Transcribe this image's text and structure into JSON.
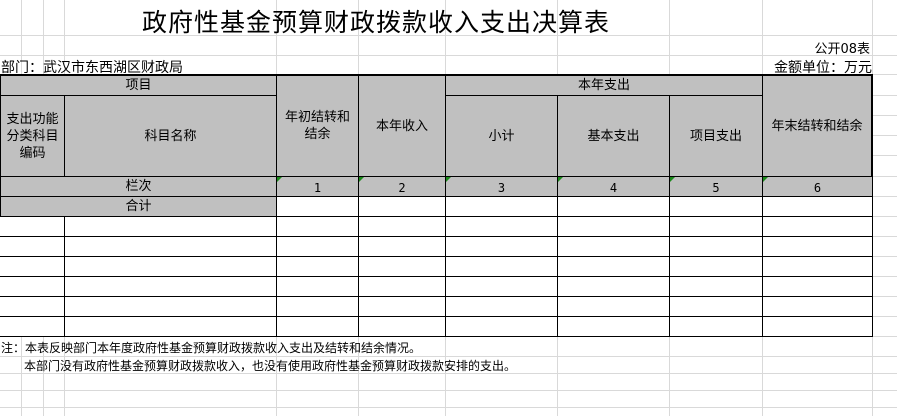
{
  "title": "政府性基金预算财政拨款收入支出决算表",
  "form_no": "公开08表",
  "department": "部门：武汉市东西湖区财政局",
  "unit": "金额单位：万元",
  "headers": {
    "item": "项目",
    "code": "支出功能分类科目编码",
    "name": "科目名称",
    "opening": "年初结转和结余",
    "income": "本年收入",
    "expense": "本年支出",
    "subtotal": "小计",
    "basic": "基本支出",
    "project": "项目支出",
    "closing": "年末结转和结余"
  },
  "column_label": "栏次",
  "column_numbers": [
    "1",
    "2",
    "3",
    "4",
    "5",
    "6"
  ],
  "total_label": "合计",
  "notes": [
    "注：本表反映部门本年度政府性基金预算财政拨款收入支出及结转和结余情况。",
    "本部门没有政府性基金预算财政拨款收入，也没有使用政府性基金预算财政拨款安排的支出。"
  ],
  "colors": {
    "header_bg": "#c0c0c0",
    "gridline": "#d9d9d9",
    "comment_marker": "#1a8a1a"
  }
}
